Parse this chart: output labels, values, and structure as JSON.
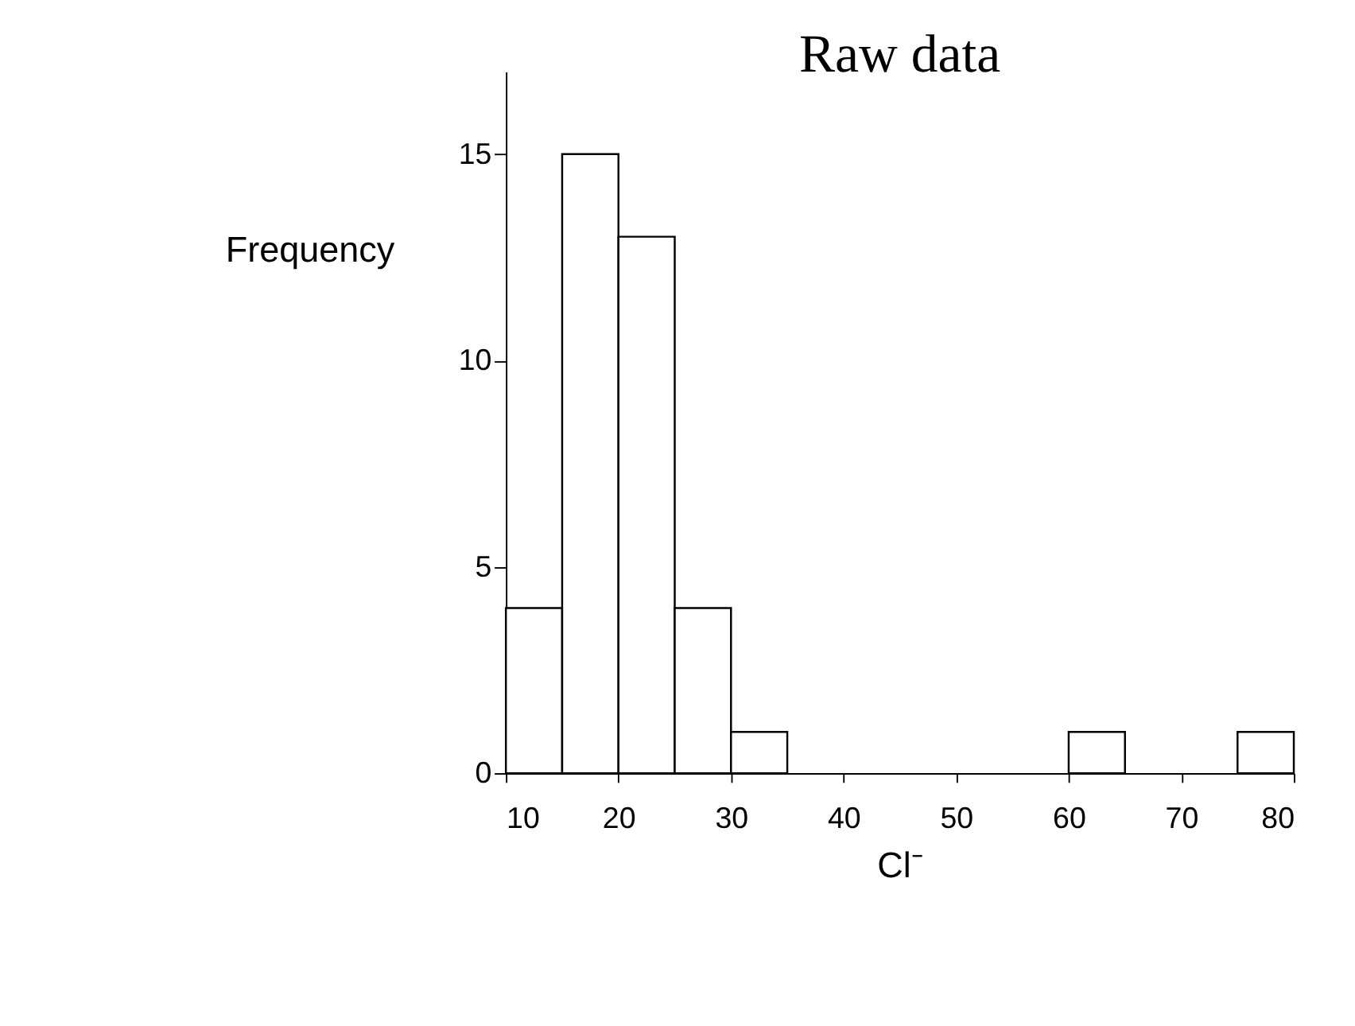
{
  "chart_data": {
    "type": "histogram",
    "title": "Raw data",
    "xlabel": "Cl⁻",
    "ylabel": "Frequency",
    "bins": [
      10,
      15,
      20,
      25,
      30,
      35,
      40,
      45,
      50,
      55,
      60,
      65,
      70,
      75,
      80
    ],
    "values": [
      4,
      15,
      13,
      4,
      1,
      0,
      0,
      0,
      0,
      0,
      1,
      0,
      0,
      1
    ],
    "color": "#ffffff",
    "xlim": [
      10,
      80
    ],
    "xticks": [
      10,
      20,
      30,
      40,
      50,
      60,
      70,
      80
    ],
    "ylim": [
      0,
      17
    ],
    "yticks": [
      0,
      5,
      10,
      15
    ],
    "grid": false
  }
}
